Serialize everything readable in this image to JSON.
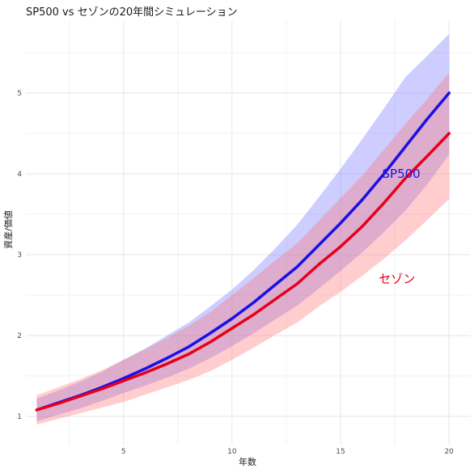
{
  "chart_data": {
    "type": "line",
    "title": "SP500 vs セゾンの20年間シミュレーション",
    "xlabel": "年数",
    "ylabel": "資産/価値",
    "xlim": [
      0.5,
      21
    ],
    "ylim": [
      0.65,
      5.9
    ],
    "x_ticks": [
      5,
      10,
      15,
      20
    ],
    "y_ticks": [
      1,
      2,
      3,
      4,
      5
    ],
    "x_minor_ticks": [
      2.5,
      7.5,
      12.5,
      17.5
    ],
    "y_minor_ticks": [
      1.5,
      2.5,
      3.5,
      4.5,
      5.5
    ],
    "grid": true,
    "legend": "none",
    "x": [
      1,
      2,
      3,
      4,
      5,
      6,
      7,
      8,
      9,
      10,
      11,
      12,
      13,
      14,
      15,
      16,
      17,
      18,
      19,
      20
    ],
    "series": [
      {
        "name": "SP500",
        "color": "#1a10e6",
        "band_color": "#7070ff",
        "label_at": [
          17.8,
          4.0
        ],
        "values": [
          1.08,
          1.17,
          1.26,
          1.36,
          1.47,
          1.59,
          1.72,
          1.86,
          2.03,
          2.21,
          2.41,
          2.63,
          2.85,
          3.12,
          3.39,
          3.68,
          4.0,
          4.34,
          4.68,
          5.0
        ],
        "lower": [
          0.94,
          1.02,
          1.1,
          1.19,
          1.29,
          1.38,
          1.48,
          1.59,
          1.72,
          1.87,
          2.03,
          2.2,
          2.37,
          2.58,
          2.8,
          3.03,
          3.28,
          3.55,
          3.87,
          4.24
        ],
        "upper": [
          1.22,
          1.32,
          1.43,
          1.55,
          1.7,
          1.84,
          2.0,
          2.16,
          2.36,
          2.57,
          2.81,
          3.08,
          3.37,
          3.71,
          4.06,
          4.43,
          4.81,
          5.2,
          5.46,
          5.73
        ]
      },
      {
        "name": "セゾン",
        "color": "#e6001a",
        "band_color": "#ff7070",
        "label_at": [
          17.6,
          2.7
        ],
        "values": [
          1.08,
          1.16,
          1.25,
          1.34,
          1.44,
          1.54,
          1.65,
          1.77,
          1.92,
          2.09,
          2.26,
          2.45,
          2.64,
          2.88,
          3.1,
          3.35,
          3.64,
          3.95,
          4.22,
          4.5
        ],
        "lower": [
          0.9,
          0.97,
          1.04,
          1.11,
          1.18,
          1.27,
          1.36,
          1.45,
          1.56,
          1.7,
          1.85,
          2.01,
          2.16,
          2.36,
          2.54,
          2.74,
          2.95,
          3.18,
          3.43,
          3.69
        ],
        "upper": [
          1.26,
          1.36,
          1.46,
          1.57,
          1.7,
          1.83,
          1.97,
          2.12,
          2.29,
          2.5,
          2.71,
          2.93,
          3.14,
          3.42,
          3.7,
          3.98,
          4.3,
          4.62,
          4.93,
          5.25
        ]
      }
    ]
  }
}
